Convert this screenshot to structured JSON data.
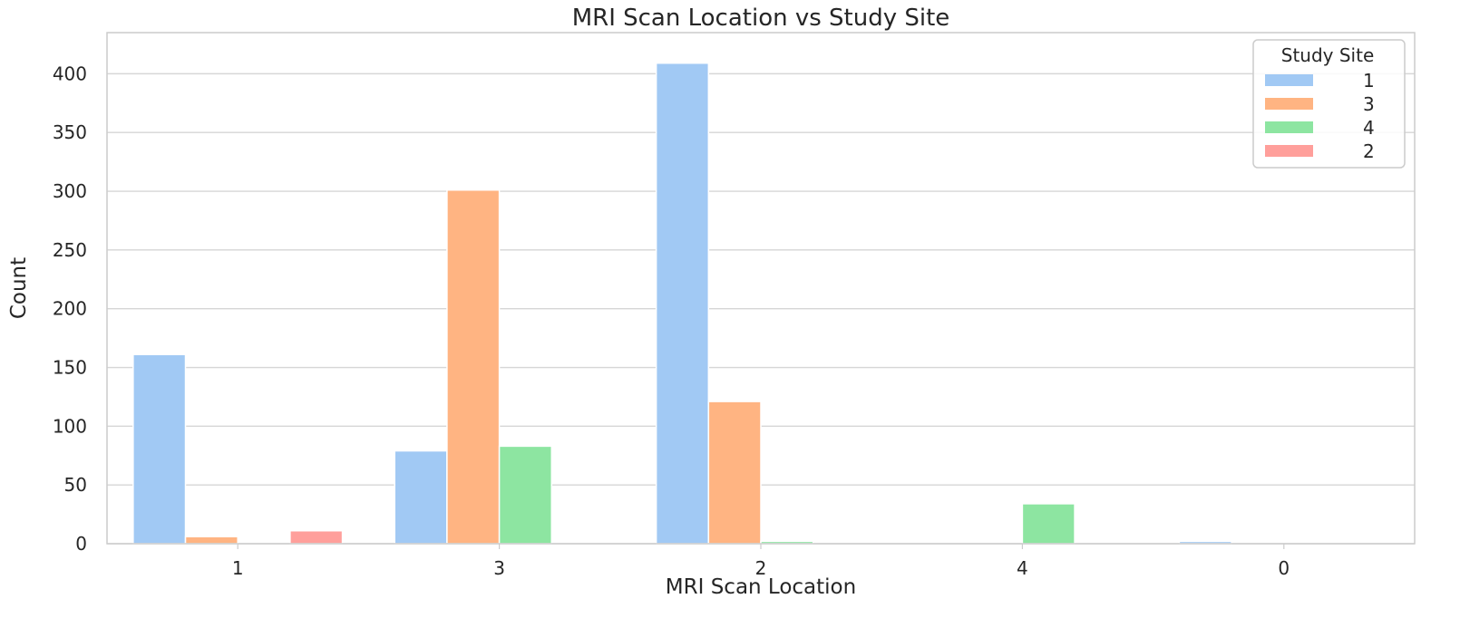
{
  "chart_data": {
    "type": "bar",
    "title": "MRI Scan Location vs Study Site",
    "xlabel": "MRI Scan Location",
    "ylabel": "Count",
    "categories": [
      "1",
      "3",
      "2",
      "4",
      "0"
    ],
    "ylim": [
      0,
      435
    ],
    "yticks": [
      0,
      50,
      100,
      150,
      200,
      250,
      300,
      350,
      400
    ],
    "grid": true,
    "legend": {
      "title": "Study Site",
      "placement": "top-right"
    },
    "series": [
      {
        "name": "1",
        "color": "#a1c9f4",
        "values": [
          161,
          79,
          409,
          0,
          2
        ]
      },
      {
        "name": "3",
        "color": "#ffb482",
        "values": [
          6,
          301,
          121,
          0,
          0
        ]
      },
      {
        "name": "4",
        "color": "#8de5a1",
        "values": [
          0,
          83,
          2,
          34,
          0
        ]
      },
      {
        "name": "2",
        "color": "#ff9f9b",
        "values": [
          11,
          0,
          0,
          0,
          0
        ]
      }
    ]
  }
}
